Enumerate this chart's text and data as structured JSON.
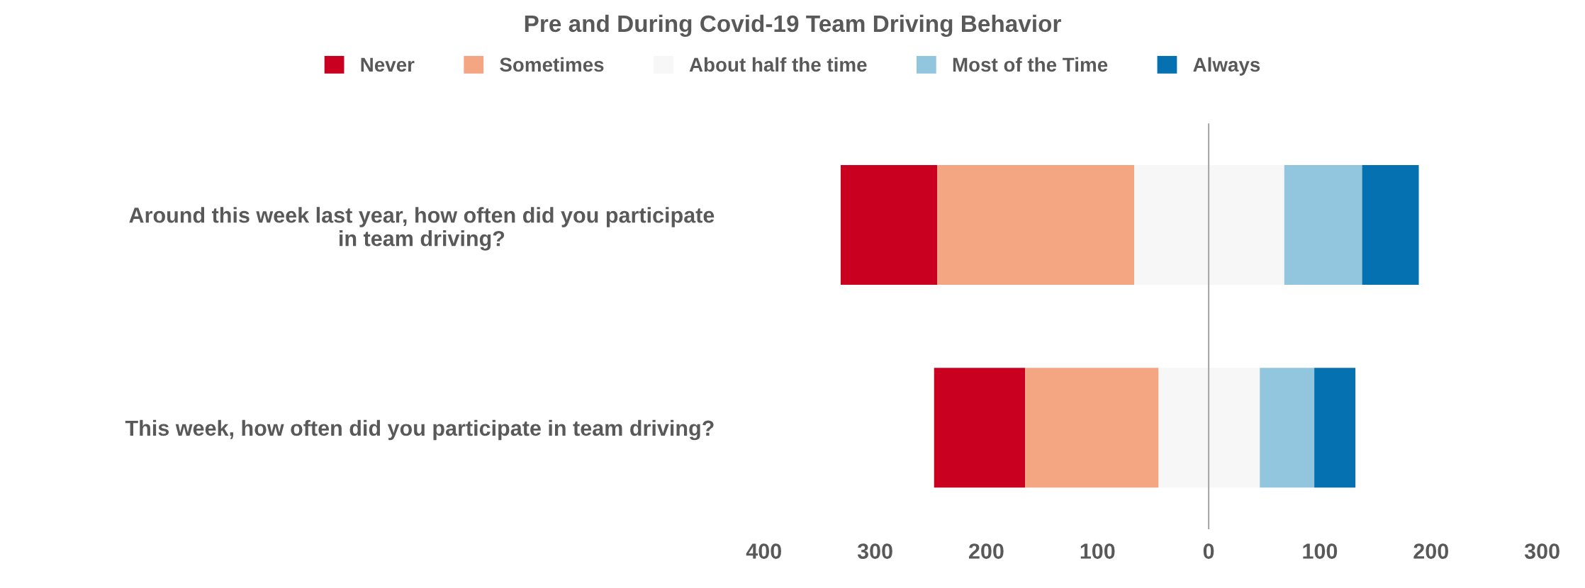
{
  "chart_data": {
    "type": "bar",
    "orientation": "horizontal",
    "title": "Pre and During Covid-19 Team Driving Behavior",
    "categories": [
      "Around this week last year, how often did you participate\nin team driving?",
      "This week, how often did you participate in team driving?"
    ],
    "series": [
      {
        "name": "Never",
        "color": "#ca0020",
        "values": [
          87,
          82
        ],
        "base": [
          -331,
          -247
        ]
      },
      {
        "name": "Sometimes",
        "color": "#f4a582",
        "values": [
          177,
          120
        ],
        "base": [
          -244,
          -165
        ]
      },
      {
        "name": "About half the time",
        "color": "#f7f7f7",
        "values": [
          135,
          91
        ],
        "base": [
          -67,
          -45
        ]
      },
      {
        "name": "Most of the Time",
        "color": "#92c5de",
        "values": [
          70,
          49
        ],
        "base": [
          68,
          46
        ]
      },
      {
        "name": "Always",
        "color": "#0571b0",
        "values": [
          51,
          37
        ],
        "base": [
          138,
          95
        ]
      }
    ],
    "xlim": [
      -400,
      300
    ],
    "xticks": [
      {
        "value": -400,
        "label": "400"
      },
      {
        "value": -300,
        "label": "300"
      },
      {
        "value": -200,
        "label": "200"
      },
      {
        "value": -100,
        "label": "100"
      },
      0,
      100,
      200,
      300
    ],
    "ref_lines": [
      {
        "axis": "x",
        "value": 0,
        "color": "#a6a6a6"
      }
    ],
    "grid": false,
    "legend": "top"
  }
}
